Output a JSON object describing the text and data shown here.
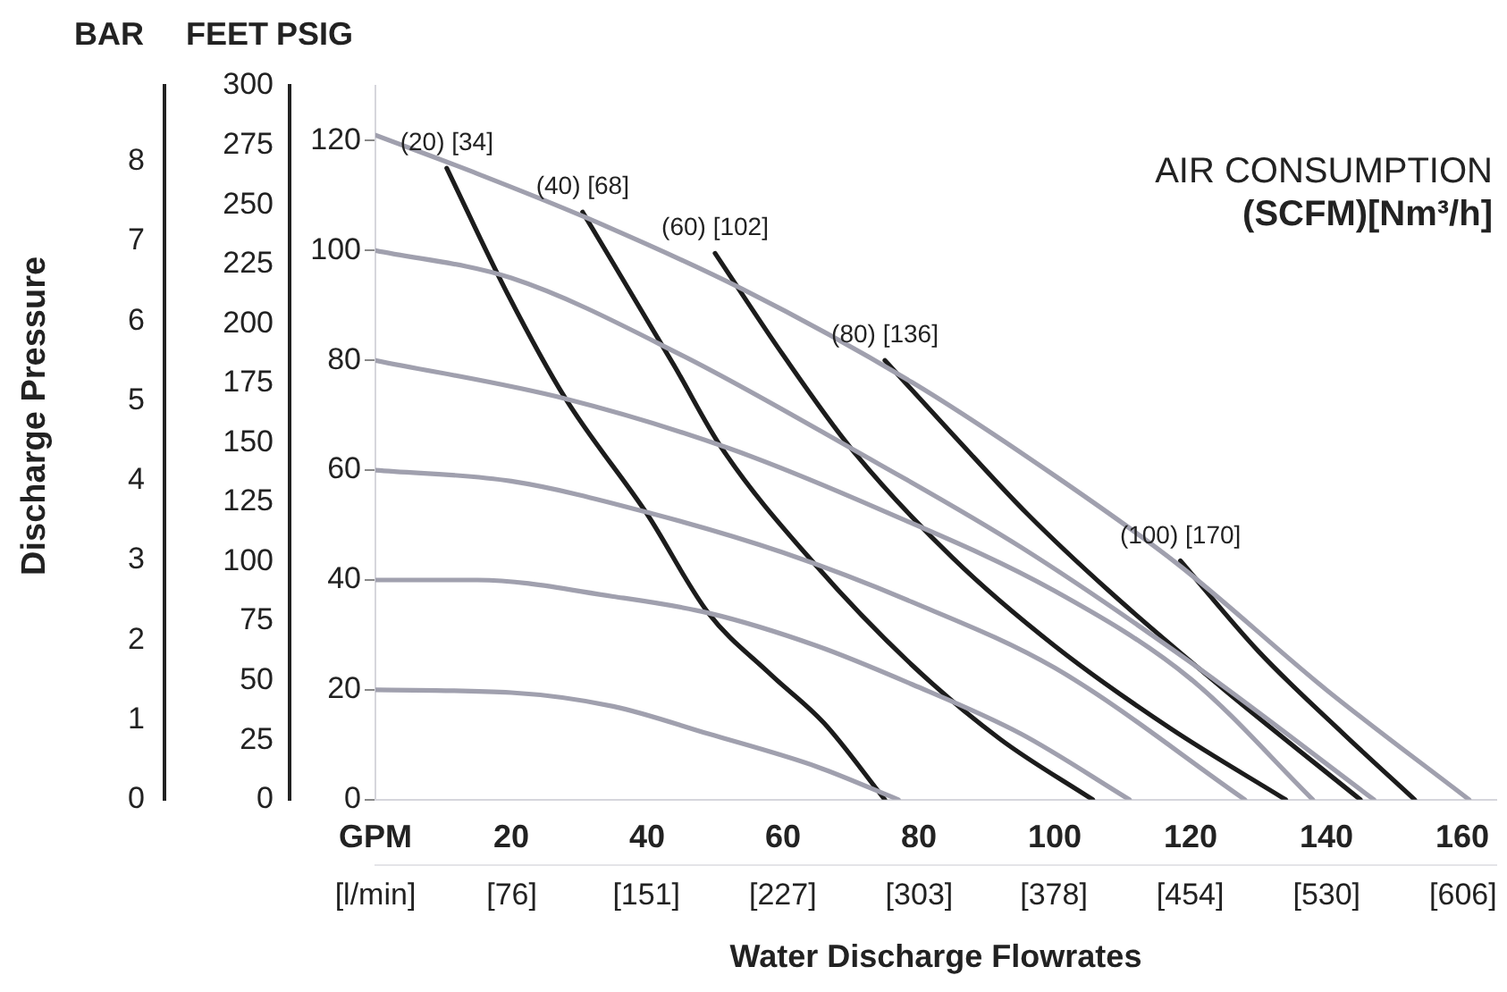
{
  "chart_data": {
    "type": "line",
    "xlabel": "Water Discharge Flowrates",
    "ylabel": "PSIG",
    "y2label": "FEET",
    "y3label": "BAR",
    "annotations": [
      "Discharge Pressure",
      "AIR CONSUMPTION",
      "(SCFM)[Nm³/h]"
    ],
    "xlim": [
      0,
      165
    ],
    "xticks": [
      {
        "value": 0,
        "label": "GPM"
      },
      20,
      40,
      60,
      80,
      100,
      120,
      140,
      160
    ],
    "x2lim": [
      0,
      624.5
    ],
    "x2ticks": [
      {
        "value": 0,
        "label": "[l/min]"
      },
      {
        "value": 76,
        "label": "[76]"
      },
      {
        "value": 151,
        "label": "[151]"
      },
      {
        "value": 227,
        "label": "[227]"
      },
      {
        "value": 303,
        "label": "[303]"
      },
      {
        "value": 378,
        "label": "[378]"
      },
      {
        "value": 454,
        "label": "[454]"
      },
      {
        "value": 530,
        "label": "[530]"
      },
      {
        "value": 606,
        "label": "[606]"
      }
    ],
    "ylim": [
      0,
      130
    ],
    "yticks": [
      0,
      20,
      40,
      60,
      80,
      100,
      120
    ],
    "y2lim": [
      0,
      300
    ],
    "y2ticks": [
      0,
      25,
      50,
      75,
      100,
      125,
      150,
      175,
      200,
      225,
      250,
      275,
      300
    ],
    "y3lim": [
      0,
      8.95
    ],
    "y3ticks": [
      0,
      1,
      2,
      3,
      4,
      5,
      6,
      7,
      8
    ],
    "grid": false,
    "legend": false,
    "marker": "none",
    "line_style": "solid",
    "series": [
      {
        "color": "#a0a0ae",
        "x": [
          0,
          15,
          31,
          54,
          79,
          100,
          118,
          140,
          161
        ],
        "values": [
          121,
          114,
          106,
          93,
          76,
          59,
          43,
          20,
          0
        ]
      },
      {
        "color": "#a0a0ae",
        "x": [
          0,
          20,
          45,
          70,
          95,
          120,
          147
        ],
        "values": [
          100,
          95,
          81,
          64,
          46,
          25,
          0
        ]
      },
      {
        "color": "#a0a0ae",
        "x": [
          0,
          28,
          52,
          74,
          100,
          120,
          138
        ],
        "values": [
          80,
          73,
          64,
          53,
          38,
          22,
          0
        ]
      },
      {
        "color": "#a0a0ae",
        "x": [
          0,
          20,
          41,
          60,
          79,
          100,
          128
        ],
        "values": [
          60,
          58,
          52,
          45,
          36,
          24,
          0
        ]
      },
      {
        "color": "#a0a0ae",
        "x": [
          0,
          15,
          35,
          49,
          65,
          79,
          95,
          111
        ],
        "values": [
          40,
          40,
          37,
          34,
          28,
          21,
          12,
          0
        ]
      },
      {
        "color": "#a0a0ae",
        "x": [
          0,
          20,
          35,
          49,
          65,
          77
        ],
        "values": [
          20,
          19.5,
          17,
          12,
          6,
          0
        ]
      },
      {
        "name": "(20) [34]",
        "color": "#1c1c1c",
        "x": [
          10.5,
          19.5,
          28,
          40,
          49,
          58,
          66,
          75
        ],
        "values": [
          115,
          92,
          73,
          52,
          34,
          23,
          14,
          0
        ]
      },
      {
        "name": "(40) [68]",
        "color": "#1c1c1c",
        "x": [
          30.5,
          44,
          51,
          64.6,
          79,
          92,
          105.6
        ],
        "values": [
          107,
          79,
          64,
          43,
          24.5,
          11,
          0
        ]
      },
      {
        "name": "(60) [102]",
        "color": "#1c1c1c",
        "x": [
          50,
          60,
          70,
          85,
          100,
          117,
          134
        ],
        "values": [
          99.5,
          81,
          64,
          44,
          28,
          13,
          0
        ]
      },
      {
        "name": "(80) [136]",
        "color": "#1c1c1c",
        "x": [
          75,
          85,
          96,
          108,
          125,
          145
        ],
        "values": [
          80,
          66.5,
          52,
          38,
          20,
          0
        ]
      },
      {
        "name": "(100) [170]",
        "color": "#1c1c1c",
        "x": [
          118.5,
          130,
          142.5,
          153
        ],
        "values": [
          43.5,
          27,
          12,
          0
        ]
      }
    ]
  }
}
